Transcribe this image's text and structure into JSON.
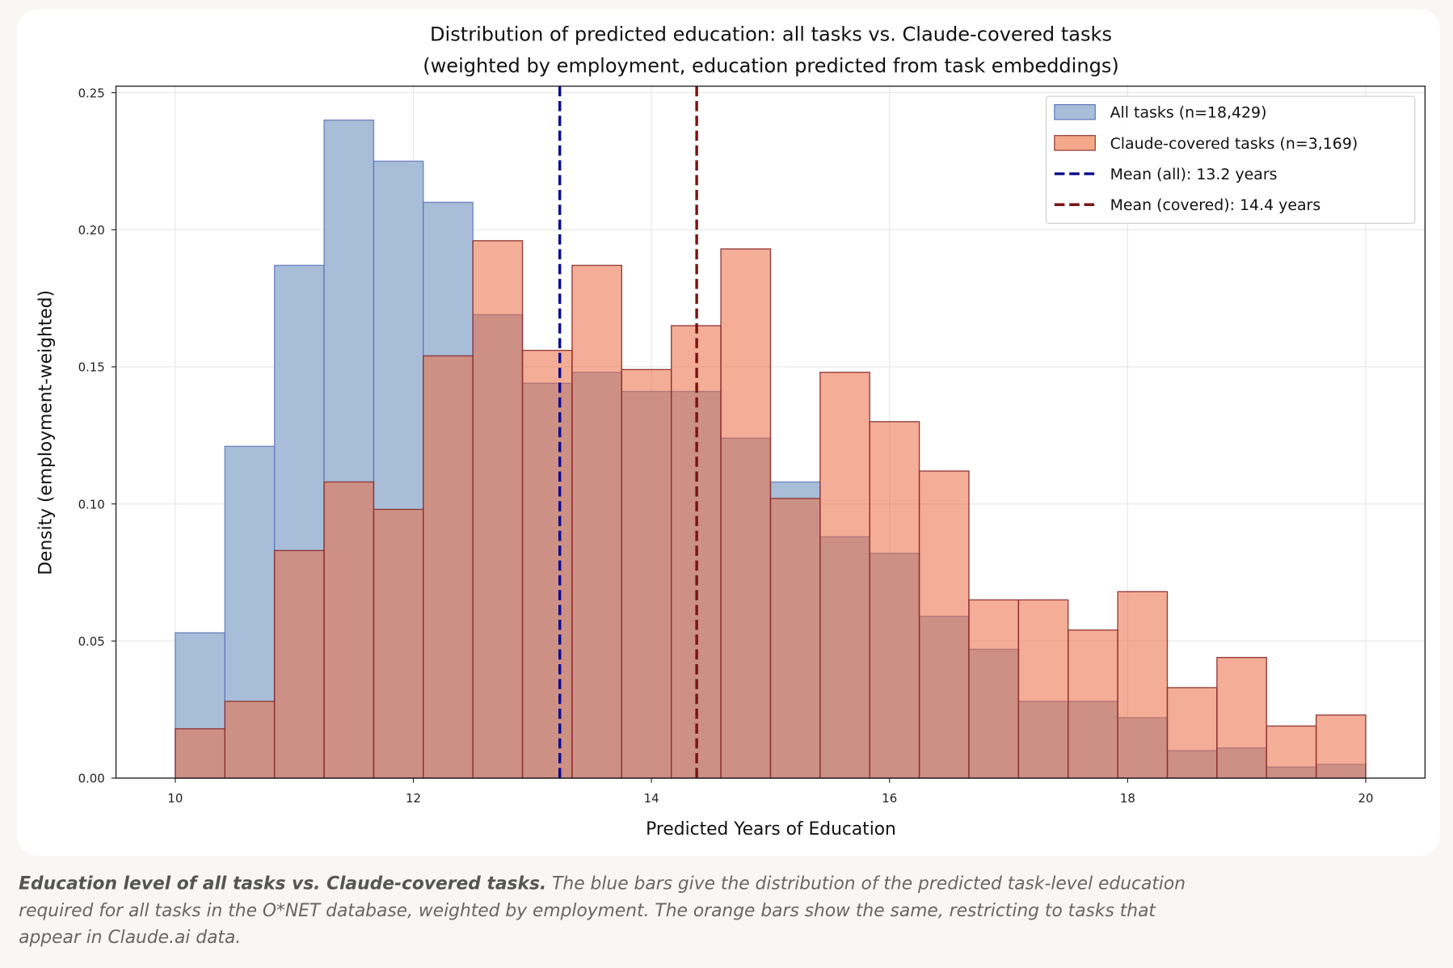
{
  "chart_data": {
    "type": "bar",
    "title": "Distribution of predicted education: all tasks vs. Claude-covered tasks",
    "subtitle": "(weighted by employment, education predicted from task embeddings)",
    "xlabel": "Predicted Years of Education",
    "ylabel": "Density (employment-weighted)",
    "xlim": [
      9.5,
      20.5
    ],
    "ylim": [
      0,
      0.253
    ],
    "xticks": [
      "10",
      "12",
      "14",
      "16",
      "18",
      "20"
    ],
    "yticks": [
      "0.00",
      "0.05",
      "0.10",
      "0.15",
      "0.20",
      "0.25"
    ],
    "grid": true,
    "legend_position": "top-right",
    "bin_range": [
      10,
      20
    ],
    "series": [
      {
        "name": "All tasks (n=18,429)",
        "color": "#a8bed8",
        "edge": "#5a6fb8",
        "values": [
          0.053,
          0.121,
          0.187,
          0.24,
          0.225,
          0.21,
          0.169,
          0.144,
          0.148,
          0.141,
          0.141,
          0.124,
          0.108,
          0.088,
          0.082,
          0.059,
          0.047,
          0.028,
          0.028,
          0.022,
          0.01,
          0.011,
          0.004,
          0.005
        ]
      },
      {
        "name": "Claude-covered tasks (n=3,169)",
        "color": "#f3a98a",
        "edge": "#8b2e2e",
        "values": [
          0.018,
          0.028,
          0.083,
          0.108,
          0.098,
          0.154,
          0.196,
          0.156,
          0.187,
          0.149,
          0.165,
          0.193,
          0.102,
          0.148,
          0.13,
          0.112,
          0.065,
          0.065,
          0.054,
          0.068,
          0.033,
          0.044,
          0.019,
          0.023
        ]
      }
    ],
    "mean_lines": [
      {
        "name": "Mean (all): 13.2 years",
        "value": 13.23,
        "color": "#0a0a8c"
      },
      {
        "name": "Mean (covered): 14.4 years",
        "value": 14.38,
        "color": "#7a1414"
      }
    ]
  },
  "caption": {
    "bold": "Education level of all tasks vs. Claude-covered tasks.",
    "line1": " The blue bars give the distribution of the predicted task-level education",
    "line2": "required for all tasks in the O*NET database, weighted by employment. The orange bars show the same, restricting to tasks that",
    "line3": "appear in Claude.ai data."
  }
}
